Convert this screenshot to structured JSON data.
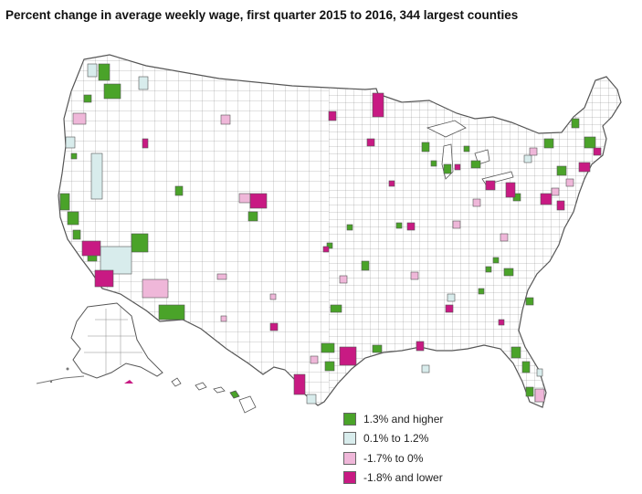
{
  "title": "Percent change in average weekly wage, first quarter 2015 to 2016, 344 largest counties",
  "colors": {
    "high": "#4aa329",
    "mid_high": "#d8ecec",
    "mid_low": "#efb7d9",
    "low": "#c81a83",
    "none": "#ffffff",
    "border": "#555555"
  },
  "legend": [
    {
      "label": "1.3% and higher",
      "class": "high"
    },
    {
      "label": "0.1% to 1.2%",
      "class": "mid_high"
    },
    {
      "label": "-1.7% to 0%",
      "class": "mid_low"
    },
    {
      "label": "-1.8% and lower",
      "class": "low"
    }
  ],
  "regions": [
    {
      "name": "Lower 48 states"
    },
    {
      "name": "Alaska"
    },
    {
      "name": "Hawaii"
    }
  ]
}
